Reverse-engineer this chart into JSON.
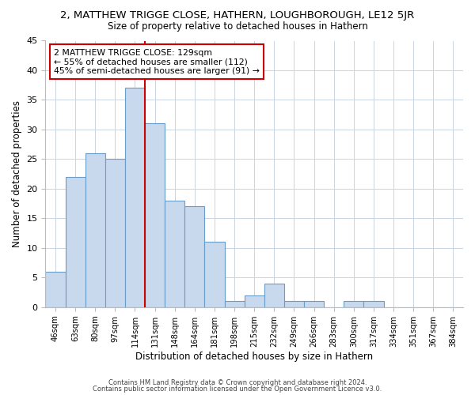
{
  "title": "2, MATTHEW TRIGGE CLOSE, HATHERN, LOUGHBOROUGH, LE12 5JR",
  "subtitle": "Size of property relative to detached houses in Hathern",
  "xlabel": "Distribution of detached houses by size in Hathern",
  "ylabel": "Number of detached properties",
  "bin_labels": [
    "46sqm",
    "63sqm",
    "80sqm",
    "97sqm",
    "114sqm",
    "131sqm",
    "148sqm",
    "164sqm",
    "181sqm",
    "198sqm",
    "215sqm",
    "232sqm",
    "249sqm",
    "266sqm",
    "283sqm",
    "300sqm",
    "317sqm",
    "334sqm",
    "351sqm",
    "367sqm",
    "384sqm"
  ],
  "bar_heights": [
    6,
    22,
    26,
    25,
    37,
    31,
    18,
    17,
    11,
    1,
    2,
    4,
    1,
    1,
    0,
    1,
    1,
    0,
    0,
    0,
    0
  ],
  "bar_color": "#c9d9ed",
  "bar_edge_color": "#6a9cc9",
  "marker_color": "#cc0000",
  "annotation_title": "2 MATTHEW TRIGGE CLOSE: 129sqm",
  "annotation_line1": "← 55% of detached houses are smaller (112)",
  "annotation_line2": "45% of semi-detached houses are larger (91) →",
  "annotation_box_color": "#ffffff",
  "annotation_box_edge": "#cc0000",
  "ylim": [
    0,
    45
  ],
  "yticks": [
    0,
    5,
    10,
    15,
    20,
    25,
    30,
    35,
    40,
    45
  ],
  "title_fontsize": 9.5,
  "subtitle_fontsize": 8.5,
  "xlabel_fontsize": 8.5,
  "ylabel_fontsize": 8.5,
  "tick_fontsize": 8,
  "xtick_fontsize": 7.2,
  "annot_fontsize": 7.8,
  "footer1": "Contains HM Land Registry data © Crown copyright and database right 2024.",
  "footer2": "Contains public sector information licensed under the Open Government Licence v3.0.",
  "background_color": "#ffffff",
  "grid_color": "#c8d4e0"
}
